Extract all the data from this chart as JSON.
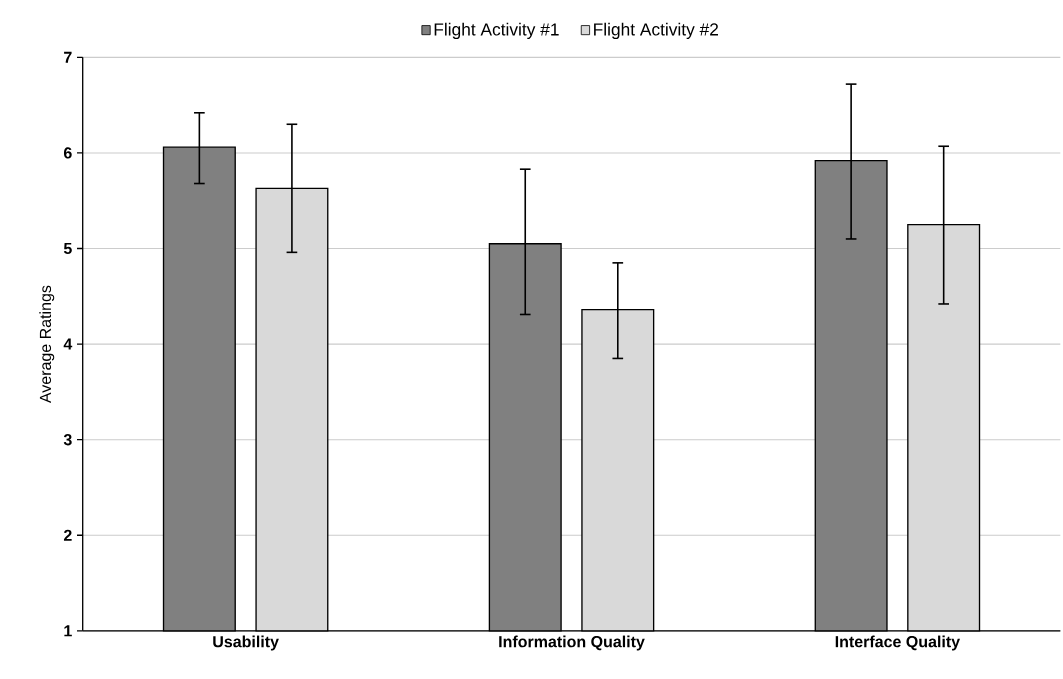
{
  "chart_data": {
    "type": "bar",
    "ylabel": "Average Ratings",
    "categories": [
      "Usability",
      "Information Quality",
      "Interface Quality"
    ],
    "series": [
      {
        "name": "Flight Activity #1",
        "color": "#808080",
        "values": [
          6.06,
          5.05,
          5.92
        ],
        "errors": [
          [
            5.68,
            6.42
          ],
          [
            4.31,
            5.83
          ],
          [
            5.1,
            6.72
          ]
        ]
      },
      {
        "name": "Flight Activity #2",
        "color": "#d9d9d9",
        "values": [
          5.63,
          4.36,
          5.25
        ],
        "errors": [
          [
            4.96,
            6.3
          ],
          [
            3.85,
            4.85
          ],
          [
            4.42,
            6.07
          ]
        ]
      }
    ],
    "ylim": [
      1,
      7
    ],
    "yticks": [
      1,
      2,
      3,
      4,
      5,
      6,
      7
    ],
    "grid": "y",
    "legend": "top"
  }
}
